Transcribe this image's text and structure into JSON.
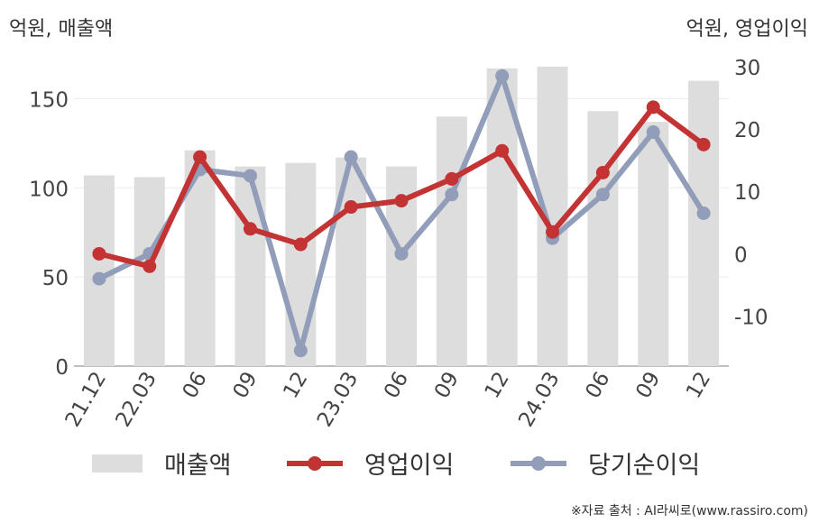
{
  "labels": {
    "left_unit": "억원, 매출액",
    "right_unit": "억원, 영업이익",
    "source": "※자료 출처 : AI라씨로(www.rassiro.com)"
  },
  "chart_data": {
    "type": "bar+line",
    "categories": [
      "21.12",
      "22.03",
      "06",
      "09",
      "12",
      "23.03",
      "06",
      "09",
      "12",
      "24.03",
      "06",
      "09",
      "12"
    ],
    "left_axis": {
      "label": "억원, 매출액",
      "ylim": [
        0,
        175
      ],
      "ticks": [
        0,
        50,
        100,
        150
      ]
    },
    "right_axis": {
      "label": "억원, 영업이익",
      "ylim": [
        -18,
        32
      ],
      "ticks": [
        -10,
        0,
        10,
        20,
        30
      ]
    },
    "grid": true,
    "legend": "bottom",
    "series": [
      {
        "name": "매출액",
        "type": "bar",
        "axis": "left",
        "color": "#dddddd",
        "values": [
          107,
          106,
          121,
          112,
          114,
          117,
          112,
          140,
          167,
          168,
          143,
          137,
          160
        ]
      },
      {
        "name": "영업이익",
        "type": "line",
        "axis": "right",
        "color": "#c33333",
        "values": [
          0,
          -2,
          15.5,
          4,
          1.5,
          7.5,
          8.5,
          12,
          16.5,
          3.5,
          13,
          23.5,
          17.5
        ]
      },
      {
        "name": "당기순이익",
        "type": "line",
        "axis": "right",
        "color": "#919db9",
        "values": [
          -4,
          0,
          13.5,
          12.5,
          -15.5,
          15.5,
          0,
          9.5,
          28.5,
          2.5,
          9.5,
          19.5,
          6.5
        ]
      }
    ]
  }
}
